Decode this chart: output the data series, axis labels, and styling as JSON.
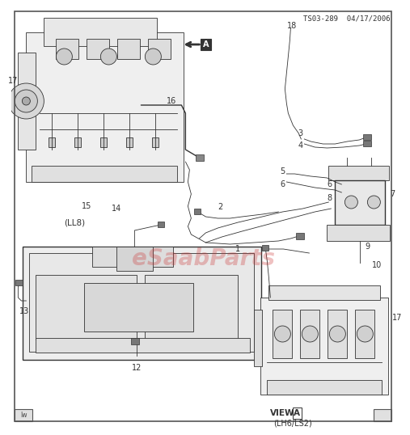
{
  "bg_color": "#ffffff",
  "line_color": "#333333",
  "light_gray": "#d8d8d8",
  "mid_gray": "#b0b0b0",
  "dark_gray": "#666666",
  "watermark_text": "eSaabParts",
  "watermark_color": "#cc3333",
  "watermark_alpha": 0.3,
  "header_text": "TS03-289  04/17/2006",
  "label_fontsize": 7.0,
  "footer_left": "lw",
  "ll8_label": "(LL8)",
  "view_label": "VIEW",
  "view_sub": "(LH6/LS2)"
}
